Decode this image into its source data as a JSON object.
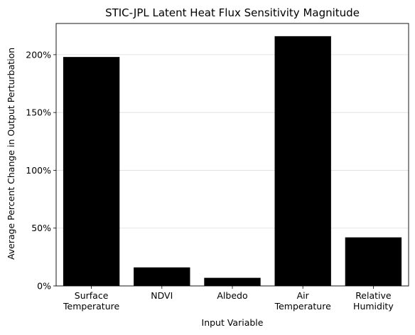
{
  "chart_data": {
    "type": "bar",
    "title": "STIC-JPL Latent Heat Flux Sensitivity Magnitude",
    "xlabel": "Input Variable",
    "ylabel": "Average Percent Change in Output Perturbation",
    "categories": [
      [
        "Surface",
        "Temperature"
      ],
      [
        "NDVI"
      ],
      [
        "Albedo"
      ],
      [
        "Air",
        "Temperature"
      ],
      [
        "Relative",
        "Humidity"
      ]
    ],
    "values": [
      198,
      16,
      7,
      216,
      42
    ],
    "ylim": [
      0,
      227
    ],
    "yticks": [
      0,
      50,
      100,
      150,
      200
    ],
    "ytick_labels": [
      "0%",
      "50%",
      "100%",
      "150%",
      "200%"
    ],
    "bar_color": "#000000",
    "grid": "horizontal",
    "grid_color": "#dddddd"
  }
}
